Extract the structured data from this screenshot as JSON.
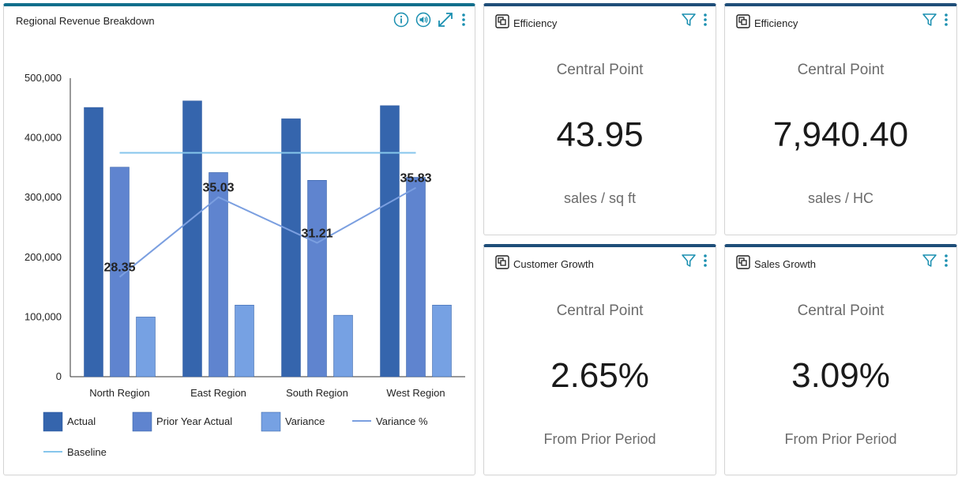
{
  "chart_card": {
    "title": "Regional Revenue Breakdown",
    "icons": [
      "info-icon",
      "audio-icon",
      "expand-icon",
      "more-vertical-icon"
    ]
  },
  "chart_data": {
    "type": "bar",
    "categories": [
      "North Region",
      "East Region",
      "South Region",
      "West Region"
    ],
    "series": [
      {
        "name": "Actual",
        "type": "bar",
        "color": "#3565ad",
        "values": [
          451000,
          462000,
          432000,
          454000
        ]
      },
      {
        "name": "Prior Year Actual",
        "type": "bar",
        "color": "#5f84cf",
        "values": [
          351000,
          342000,
          329000,
          334000
        ]
      },
      {
        "name": "Variance",
        "type": "bar",
        "color": "#76a1e3",
        "values": [
          100000,
          120000,
          103000,
          120000
        ]
      },
      {
        "name": "Variance %",
        "type": "line",
        "color": "#7b9fe0",
        "values": [
          28.35,
          35.03,
          31.21,
          35.83
        ]
      },
      {
        "name": "Baseline",
        "type": "line",
        "color": "#86c6ec",
        "values": [
          375000,
          375000,
          375000,
          375000
        ]
      }
    ],
    "data_labels": [
      "28.35",
      "35.03",
      "31.21",
      "35.83"
    ],
    "yticks": [
      "0",
      "100,000",
      "200,000",
      "300,000",
      "400,000",
      "500,000"
    ],
    "ylim": [
      0,
      500000
    ],
    "line_scale": {
      "min": 20,
      "max": 45
    },
    "legend_position": "bottom-left",
    "grid": false,
    "xlabel": "",
    "ylabel": ""
  },
  "kpis": [
    {
      "title": "Efficiency",
      "top": "Central Point",
      "value": "43.95",
      "bottom": "sales / sq ft"
    },
    {
      "title": "Efficiency",
      "top": "Central Point",
      "value": "7,940.40",
      "bottom": "sales / HC"
    },
    {
      "title": "Customer Growth",
      "top": "Central Point",
      "value": "2.65%",
      "bottom": "From Prior Period"
    },
    {
      "title": "Sales Growth",
      "top": "Central Point",
      "value": "3.09%",
      "bottom": "From Prior Period"
    }
  ],
  "colors": {
    "card_top_border": "#1f4e79",
    "chart_top_border": "#0f6e8c",
    "icon_accent": "#1a8fb0"
  }
}
